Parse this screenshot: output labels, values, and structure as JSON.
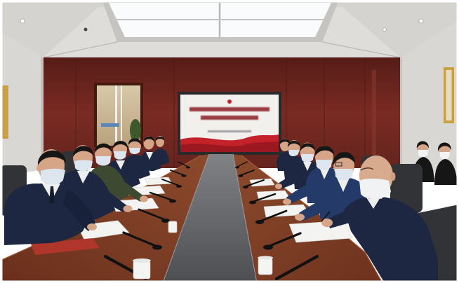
{
  "photo": {
    "palette": {
      "ceiling": "#cfcdc9",
      "ceiling_light": "#dfddd9",
      "light": "#fafbfd",
      "side_wall": "#d9d7d3",
      "gold": "#c9a046",
      "suit": "#1d2742",
      "suit_blue": "#243a68",
      "uniform": "#3d4a31",
      "skin": "#d6a486",
      "hair": "#161616",
      "mask": "#dde6ee",
      "shirt": "#eeeeee",
      "chair": "#323336",
      "paper": "#f3f3f1",
      "mic": "#111111",
      "folder": "#b0362b",
      "screen_red": "#c3222b"
    }
  }
}
